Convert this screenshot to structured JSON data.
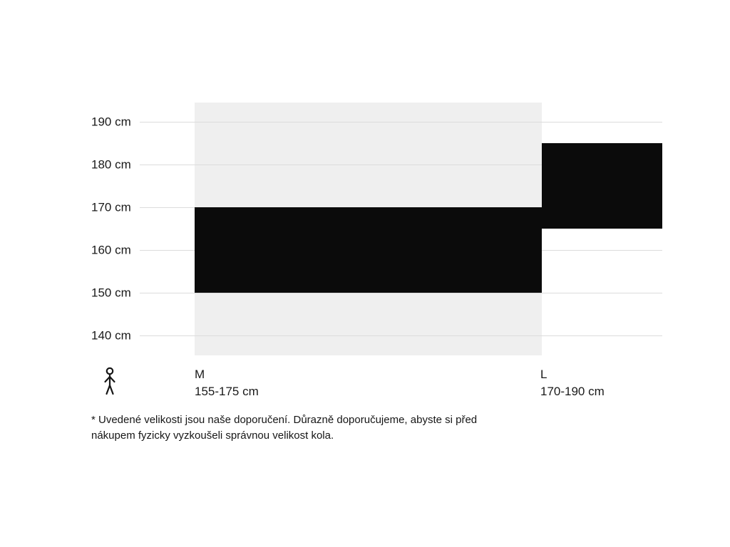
{
  "chart_data": {
    "type": "bar",
    "variant": "floating-range-columns",
    "title": "",
    "xlabel": "",
    "ylabel": "",
    "unit": "cm",
    "grid": "horizontal",
    "legend_position": "none",
    "ylim": [
      135,
      195
    ],
    "y_ticks": [
      {
        "value": 190,
        "label": "190 cm"
      },
      {
        "value": 180,
        "label": "180 cm"
      },
      {
        "value": 170,
        "label": "170 cm"
      },
      {
        "value": 160,
        "label": "160 cm"
      },
      {
        "value": 150,
        "label": "150 cm"
      },
      {
        "value": 140,
        "label": "140 cm"
      }
    ],
    "series": [
      {
        "name": "M",
        "range_label": "155-175 cm",
        "min": 155,
        "max": 175,
        "column_highlighted": true
      },
      {
        "name": "L",
        "range_label": "170-190 cm",
        "min": 170,
        "max": 190,
        "column_highlighted": false
      }
    ],
    "x_axis_icon": "person-height-icon",
    "colors": {
      "bar": "#0b0b0b",
      "column_highlight": "#efefef",
      "gridline": "#dcdcdc",
      "text": "#1a1a1a"
    }
  },
  "footnote": "* Uvedené velikosti jsou naše doporučení. Důrazně doporučujeme, abyste si před nákupem fyzicky vyzkoušeli správnou velikost kola."
}
